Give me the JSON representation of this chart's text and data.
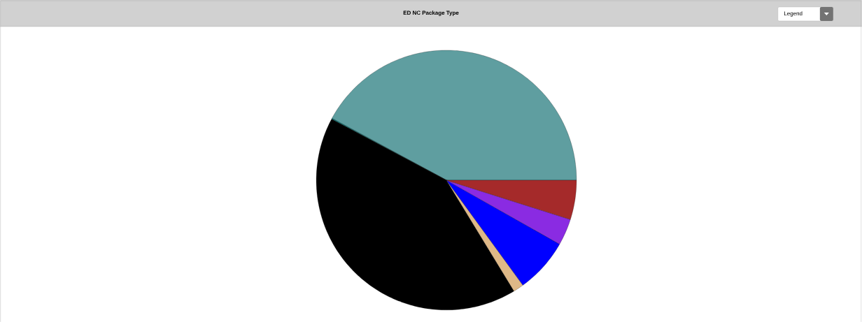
{
  "chart_data": {
    "type": "pie",
    "title": "ED NC Package Type",
    "categories": [
      null,
      null,
      null,
      null,
      null,
      null,
      null
    ],
    "values": [
      42.1,
      0.1,
      41.5,
      1.3,
      6.8,
      3.3,
      4.9
    ],
    "colors": [
      "#5f9ea0",
      "#008080",
      "#000000",
      "#deb887",
      "#0000ff",
      "#8a2be2",
      "#a52a2a"
    ],
    "annotations": [
      "Legend"
    ]
  }
}
